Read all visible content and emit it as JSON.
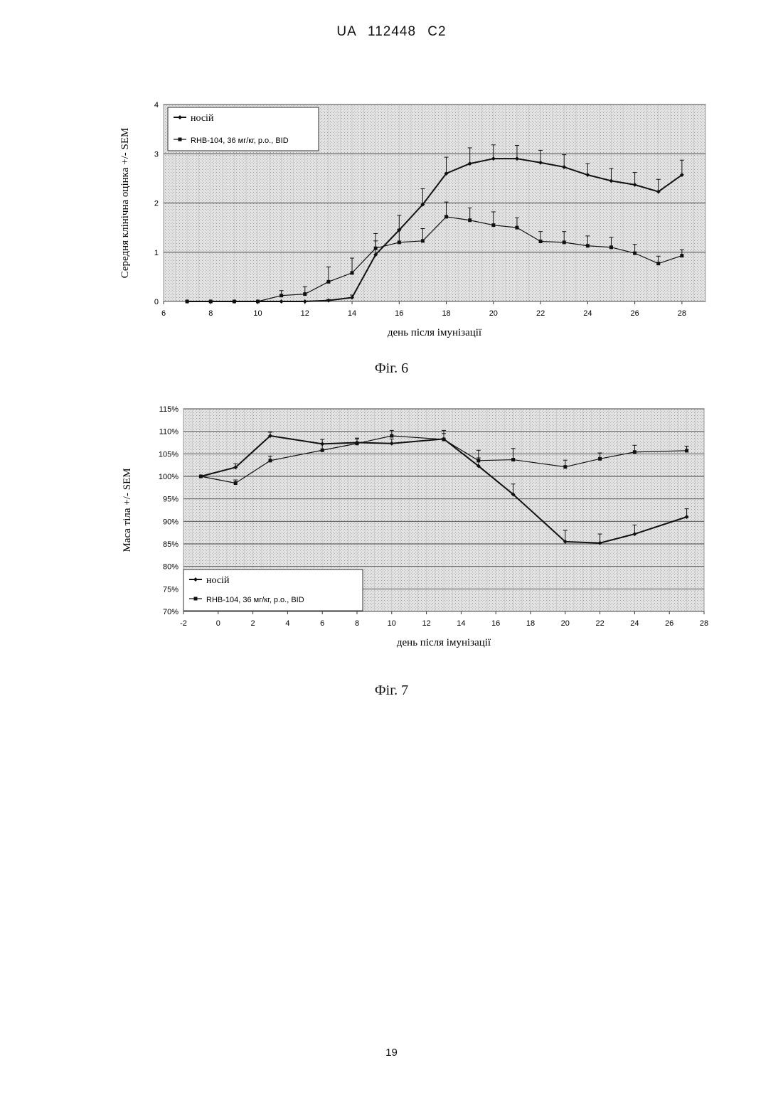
{
  "header": "UA  112448  C2",
  "page_number": "19",
  "figures": [
    {
      "caption": "Фіг. 6"
    },
    {
      "caption": "Фіг. 7"
    }
  ],
  "chart_data": [
    {
      "type": "line",
      "xlabel": "день після імунізації",
      "ylabel": "Середня клінічна оцінка +/- SEM",
      "xlim": [
        6,
        29
      ],
      "ylim": [
        0,
        4
      ],
      "x_ticks": [
        "6",
        "8",
        "10",
        "12",
        "14",
        "16",
        "18",
        "20",
        "22",
        "24",
        "26",
        "28"
      ],
      "y_ticks": [
        "0",
        "1",
        "2",
        "3",
        "4"
      ],
      "grid": true,
      "legend_position": "top-left",
      "series": [
        {
          "name": "носій",
          "x": [
            7,
            8,
            9,
            10,
            11,
            12,
            13,
            14,
            15,
            16,
            17,
            18,
            19,
            20,
            21,
            22,
            23,
            24,
            25,
            26,
            27,
            28
          ],
          "y": [
            0,
            0,
            0,
            0,
            0,
            0,
            0.02,
            0.08,
            0.95,
            1.45,
            1.97,
            2.6,
            2.8,
            2.9,
            2.9,
            2.82,
            2.73,
            2.57,
            2.45,
            2.37,
            2.23,
            2.57
          ],
          "err": [
            0,
            0,
            0,
            0,
            0,
            0,
            0.02,
            0.05,
            0.28,
            0.3,
            0.32,
            0.33,
            0.32,
            0.28,
            0.27,
            0.25,
            0.25,
            0.23,
            0.25,
            0.25,
            0.25,
            0.3
          ]
        },
        {
          "name": "RHB-104, 36 мг/кг, p.o., BID",
          "x": [
            7,
            8,
            9,
            10,
            11,
            12,
            13,
            14,
            15,
            16,
            17,
            18,
            19,
            20,
            21,
            22,
            23,
            24,
            25,
            26,
            27,
            28
          ],
          "y": [
            0,
            0,
            0,
            0,
            0.12,
            0.15,
            0.4,
            0.58,
            1.08,
            1.2,
            1.23,
            1.72,
            1.65,
            1.55,
            1.5,
            1.22,
            1.2,
            1.13,
            1.1,
            0.98,
            0.77,
            0.93
          ],
          "err": [
            0,
            0,
            0,
            0,
            0.1,
            0.15,
            0.3,
            0.3,
            0.3,
            0.27,
            0.25,
            0.3,
            0.25,
            0.27,
            0.2,
            0.2,
            0.22,
            0.2,
            0.2,
            0.18,
            0.15,
            0.12
          ]
        }
      ]
    },
    {
      "type": "line",
      "xlabel": "день після імунізації",
      "ylabel": "Маса тіла +/- SEM",
      "xlim": [
        -2,
        28
      ],
      "ylim": [
        70,
        115
      ],
      "x_ticks": [
        "-2",
        "0",
        "2",
        "4",
        "6",
        "8",
        "10",
        "12",
        "14",
        "16",
        "18",
        "20",
        "22",
        "24",
        "26",
        "28"
      ],
      "y_ticks": [
        "70%",
        "75%",
        "80%",
        "85%",
        "90%",
        "95%",
        "100%",
        "105%",
        "110%",
        "115%"
      ],
      "grid": true,
      "legend_position": "bottom-left",
      "series": [
        {
          "name": "носій",
          "x": [
            -1,
            1,
            3,
            6,
            8,
            10,
            13,
            15,
            17,
            20,
            22,
            24,
            27
          ],
          "y": [
            100,
            102,
            109,
            107.2,
            107.5,
            107.3,
            108.3,
            102.3,
            96,
            85.5,
            85.2,
            87.2,
            91
          ],
          "err": [
            0,
            0.8,
            0.8,
            1,
            0.8,
            1,
            1.2,
            1.8,
            2.3,
            2.5,
            2,
            2,
            1.8
          ]
        },
        {
          "name": "RHB-104, 36 мг/кг, p.o., BID",
          "x": [
            -1,
            1,
            3,
            6,
            8,
            10,
            13,
            15,
            17,
            20,
            22,
            24,
            27
          ],
          "y": [
            100,
            98.5,
            103.5,
            105.8,
            107.3,
            109,
            108.2,
            103.5,
            103.7,
            102.1,
            103.9,
            105.4,
            105.7
          ],
          "err": [
            0,
            0.7,
            1,
            1.5,
            1.2,
            1.2,
            2,
            2.3,
            2.5,
            1.5,
            1.3,
            1.5,
            1
          ]
        }
      ]
    }
  ]
}
